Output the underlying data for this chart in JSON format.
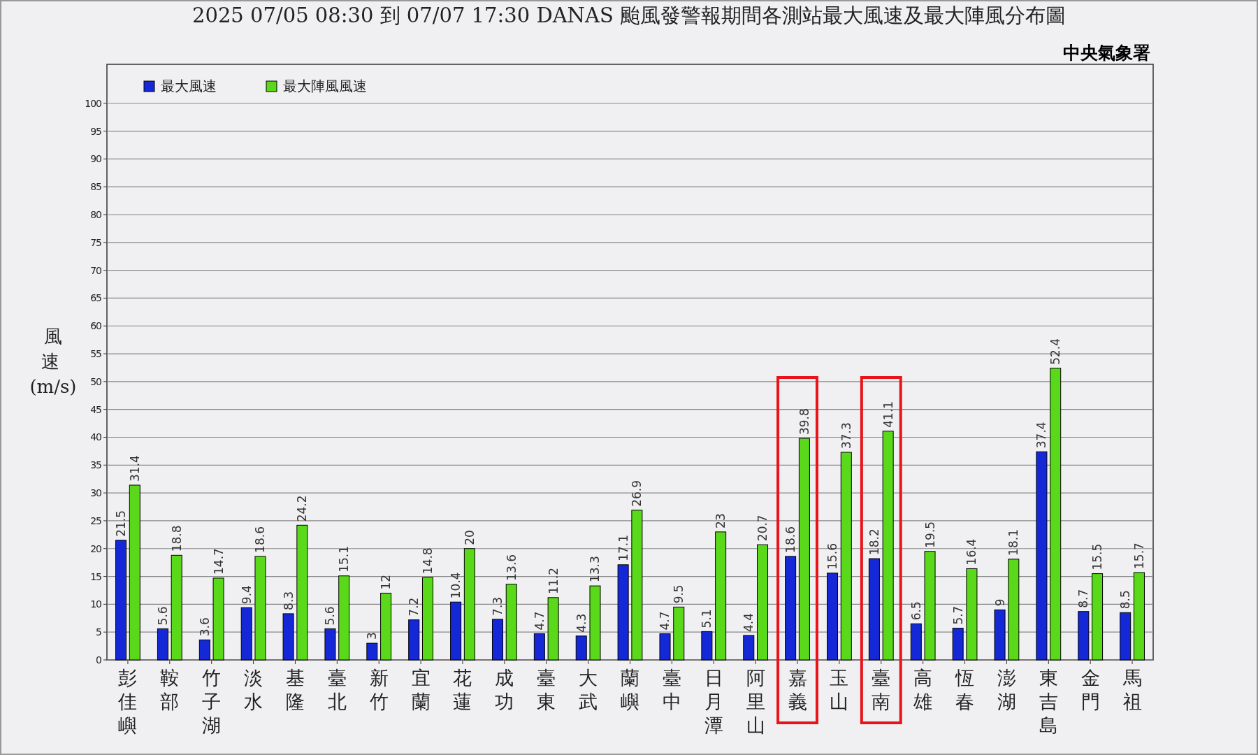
{
  "chart_data": {
    "type": "bar",
    "title": "2025 07/05 08:30 到 07/07 17:30 DANAS 颱風發警報期間各測站最大風速及最大陣風分布圖",
    "annotations": [
      "中央氣象署"
    ],
    "ylabel": "風速 (m/s)",
    "categories": [
      "彭佳嶼",
      "鞍部",
      "竹子湖",
      "淡水",
      "基隆",
      "臺北",
      "新竹",
      "宜蘭",
      "花蓮",
      "成功",
      "臺東",
      "大武",
      "蘭嶼",
      "臺中",
      "日月潭",
      "阿里山",
      "嘉義",
      "玉山",
      "臺南",
      "高雄",
      "恆春",
      "澎湖",
      "東吉島",
      "金門",
      "馬祖"
    ],
    "series": [
      {
        "name": "最大風速",
        "color": "#1428d8",
        "values": [
          21.5,
          5.6,
          3.6,
          9.4,
          8.3,
          5.6,
          3,
          7.2,
          10.4,
          7.3,
          4.7,
          4.3,
          17.1,
          4.7,
          5.1,
          4.4,
          18.6,
          15.6,
          18.2,
          6.5,
          5.7,
          9,
          37.4,
          8.7,
          8.5
        ]
      },
      {
        "name": "最大陣風風速",
        "color": "#5ad81a",
        "values": [
          31.4,
          18.8,
          14.7,
          18.6,
          24.2,
          15.1,
          12,
          14.8,
          20,
          13.6,
          11.2,
          13.3,
          26.9,
          9.5,
          23,
          20.7,
          39.8,
          37.3,
          41.1,
          19.5,
          16.4,
          18.1,
          52.4,
          15.5,
          15.7
        ]
      }
    ],
    "ylim": [
      0,
      107
    ],
    "yticks": [
      0,
      5,
      10,
      15,
      20,
      25,
      30,
      35,
      40,
      45,
      50,
      55,
      60,
      65,
      70,
      75,
      80,
      85,
      90,
      95,
      100
    ],
    "grid": "y",
    "legend": "top left",
    "data_labels": true
  }
}
